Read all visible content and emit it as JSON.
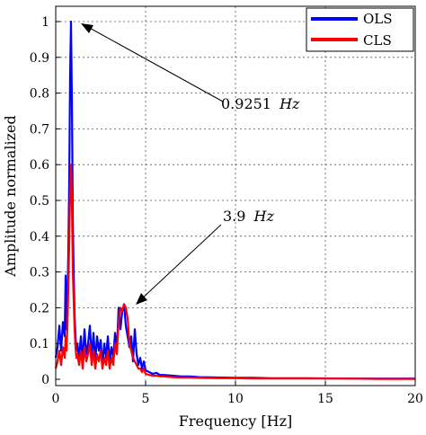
{
  "chart_data": {
    "type": "line",
    "title": "",
    "xlabel": "Frequency  [Hz]",
    "ylabel": "Amplitude normalized",
    "xlim": [
      0,
      20
    ],
    "ylim": [
      0,
      1.05
    ],
    "xticks": [
      "0",
      "5",
      "10",
      "15",
      "20"
    ],
    "yticks": [
      "0",
      "0.1",
      "0.2",
      "0.3",
      "0.4",
      "0.5",
      "0.6",
      "0.7",
      "0.8",
      "0.9",
      "1"
    ],
    "grid": true,
    "legend_position": "top-right",
    "series": [
      {
        "name": "OLS",
        "color": "#0000ff",
        "x": [
          0.0,
          0.1,
          0.2,
          0.3,
          0.4,
          0.5,
          0.55,
          0.6,
          0.65,
          0.7,
          0.75,
          0.8,
          0.85,
          0.9,
          0.925,
          0.95,
          1.0,
          1.05,
          1.1,
          1.15,
          1.2,
          1.3,
          1.4,
          1.5,
          1.6,
          1.7,
          1.8,
          1.9,
          2.0,
          2.1,
          2.2,
          2.3,
          2.4,
          2.5,
          2.6,
          2.7,
          2.8,
          2.9,
          3.0,
          3.1,
          3.2,
          3.3,
          3.4,
          3.5,
          3.6,
          3.7,
          3.8,
          3.9,
          4.0,
          4.1,
          4.2,
          4.3,
          4.4,
          4.5,
          4.6,
          4.7,
          4.8,
          4.9,
          5.0,
          5.2,
          5.4,
          5.6,
          5.8,
          6.0,
          6.5,
          7.0,
          7.5,
          8.0,
          9.0,
          10.0,
          11.0,
          12.0,
          14.0,
          16.0,
          18.0,
          20.0
        ],
        "y": [
          0.06,
          0.09,
          0.15,
          0.08,
          0.16,
          0.12,
          0.29,
          0.14,
          0.22,
          0.35,
          0.55,
          0.85,
          1.0,
          0.78,
          0.62,
          0.45,
          0.3,
          0.18,
          0.12,
          0.08,
          0.1,
          0.06,
          0.12,
          0.05,
          0.14,
          0.07,
          0.1,
          0.15,
          0.06,
          0.13,
          0.05,
          0.12,
          0.08,
          0.11,
          0.04,
          0.1,
          0.06,
          0.12,
          0.05,
          0.09,
          0.06,
          0.13,
          0.08,
          0.2,
          0.14,
          0.19,
          0.21,
          0.15,
          0.12,
          0.09,
          0.12,
          0.05,
          0.14,
          0.07,
          0.04,
          0.06,
          0.03,
          0.05,
          0.025,
          0.02,
          0.015,
          0.018,
          0.012,
          0.012,
          0.01,
          0.008,
          0.008,
          0.006,
          0.005,
          0.004,
          0.004,
          0.003,
          0.003,
          0.002,
          0.002,
          0.002
        ]
      },
      {
        "name": "CLS",
        "color": "#ff0000",
        "x": [
          0.0,
          0.1,
          0.2,
          0.3,
          0.4,
          0.5,
          0.55,
          0.6,
          0.65,
          0.7,
          0.75,
          0.8,
          0.85,
          0.9,
          0.925,
          0.95,
          1.0,
          1.05,
          1.1,
          1.15,
          1.2,
          1.3,
          1.4,
          1.5,
          1.6,
          1.7,
          1.8,
          1.9,
          2.0,
          2.1,
          2.2,
          2.3,
          2.4,
          2.5,
          2.6,
          2.7,
          2.8,
          2.9,
          3.0,
          3.1,
          3.2,
          3.3,
          3.4,
          3.5,
          3.6,
          3.7,
          3.8,
          3.9,
          4.0,
          4.1,
          4.2,
          4.3,
          4.4,
          4.5,
          4.6,
          4.7,
          4.8,
          4.9,
          5.0,
          5.2,
          5.4,
          5.6,
          5.8,
          6.0,
          6.5,
          7.0,
          7.5,
          8.0,
          9.0,
          10.0,
          11.0,
          12.0,
          14.0,
          16.0,
          18.0,
          20.0
        ],
        "y": [
          0.03,
          0.05,
          0.08,
          0.04,
          0.09,
          0.06,
          0.12,
          0.08,
          0.15,
          0.25,
          0.38,
          0.52,
          0.6,
          0.5,
          0.4,
          0.3,
          0.22,
          0.14,
          0.09,
          0.06,
          0.07,
          0.04,
          0.08,
          0.03,
          0.09,
          0.05,
          0.07,
          0.1,
          0.04,
          0.08,
          0.03,
          0.07,
          0.05,
          0.08,
          0.03,
          0.06,
          0.04,
          0.08,
          0.03,
          0.06,
          0.04,
          0.1,
          0.07,
          0.16,
          0.2,
          0.19,
          0.21,
          0.2,
          0.17,
          0.1,
          0.08,
          0.06,
          0.05,
          0.04,
          0.03,
          0.03,
          0.02,
          0.03,
          0.015,
          0.012,
          0.01,
          0.01,
          0.008,
          0.008,
          0.006,
          0.005,
          0.005,
          0.004,
          0.003,
          0.003,
          0.002,
          0.002,
          0.002,
          0.002,
          0.001,
          0.001
        ]
      }
    ],
    "annotations": [
      {
        "text": "0.9251 Hz",
        "number": "0.9251",
        "unit": "Hz",
        "x": 0.9251,
        "y": 1.0
      },
      {
        "text": "3.9 Hz",
        "number": "3.9",
        "unit": "Hz",
        "x": 3.9,
        "y": 0.21
      }
    ]
  }
}
